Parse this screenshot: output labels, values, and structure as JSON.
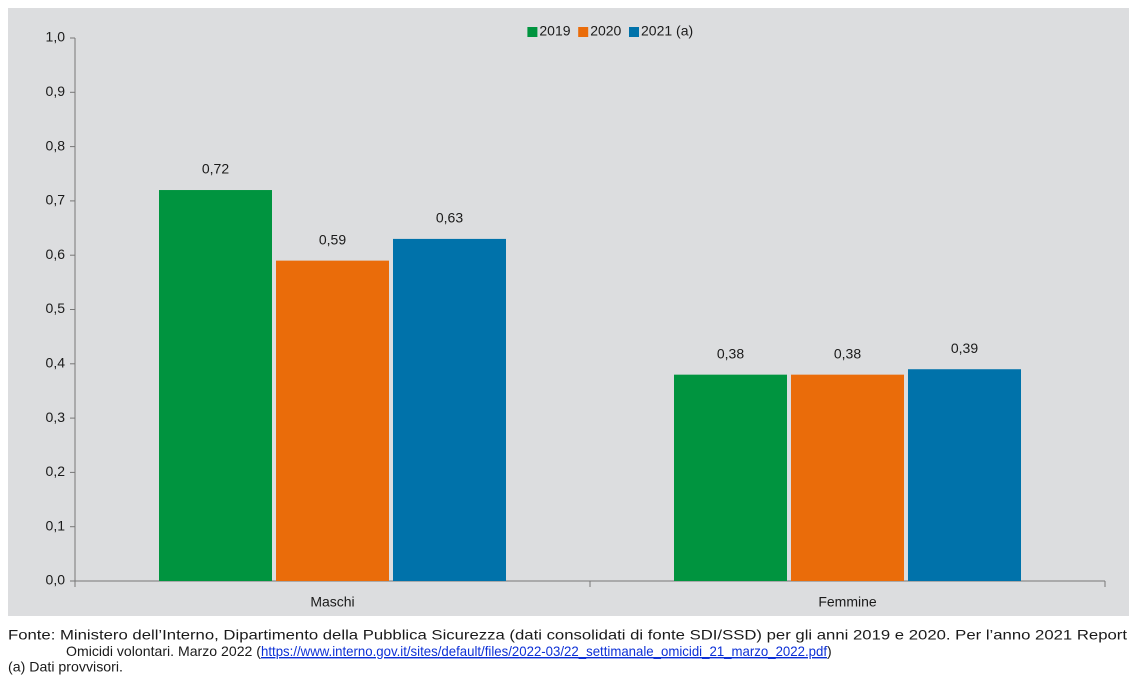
{
  "chart_data": {
    "type": "bar",
    "categories": [
      "Maschi",
      "Femmine"
    ],
    "series": [
      {
        "name": "2019",
        "color": "#00943f",
        "values": [
          0.72,
          0.38
        ],
        "value_labels": [
          "0,72",
          "0,38"
        ]
      },
      {
        "name": "2020",
        "color": "#ea6c0a",
        "values": [
          0.59,
          0.38
        ],
        "value_labels": [
          "0,59",
          "0,38"
        ]
      },
      {
        "name": "2021 (a)",
        "color": "#0072aa",
        "values": [
          0.63,
          0.39
        ],
        "value_labels": [
          "0,63",
          "0,39"
        ]
      }
    ],
    "ylim": [
      0,
      1
    ],
    "yticks": [
      {
        "value": 0,
        "label": "0,0"
      },
      {
        "value": 0.1,
        "label": "0,1"
      },
      {
        "value": 0.2,
        "label": "0,2"
      },
      {
        "value": 0.3,
        "label": "0,3"
      },
      {
        "value": 0.4,
        "label": "0,4"
      },
      {
        "value": 0.5,
        "label": "0,5"
      },
      {
        "value": 0.6,
        "label": "0,6"
      },
      {
        "value": 0.7,
        "label": "0,7"
      },
      {
        "value": 0.8,
        "label": "0,8"
      },
      {
        "value": 0.9,
        "label": "0,9"
      },
      {
        "value": 1,
        "label": "1,0"
      }
    ],
    "legend": "top",
    "grid": false
  },
  "footer": {
    "source_line1": "Fonte: Ministero dell’Interno, Dipartimento della Pubblica Sicurezza (dati consolidati di fonte SDI/SSD) per gli anni 2019 e 2020. Per l’anno 2021 Report",
    "source_line2": "Omicidi volontari. Marzo 2022 (",
    "link": "https://www.interno.gov.it/sites/default/files/2022-03/22_settimanale_omicidi_21_marzo_2022.pdf",
    "source_close": ")",
    "note": "(a) Dati provvisori."
  }
}
